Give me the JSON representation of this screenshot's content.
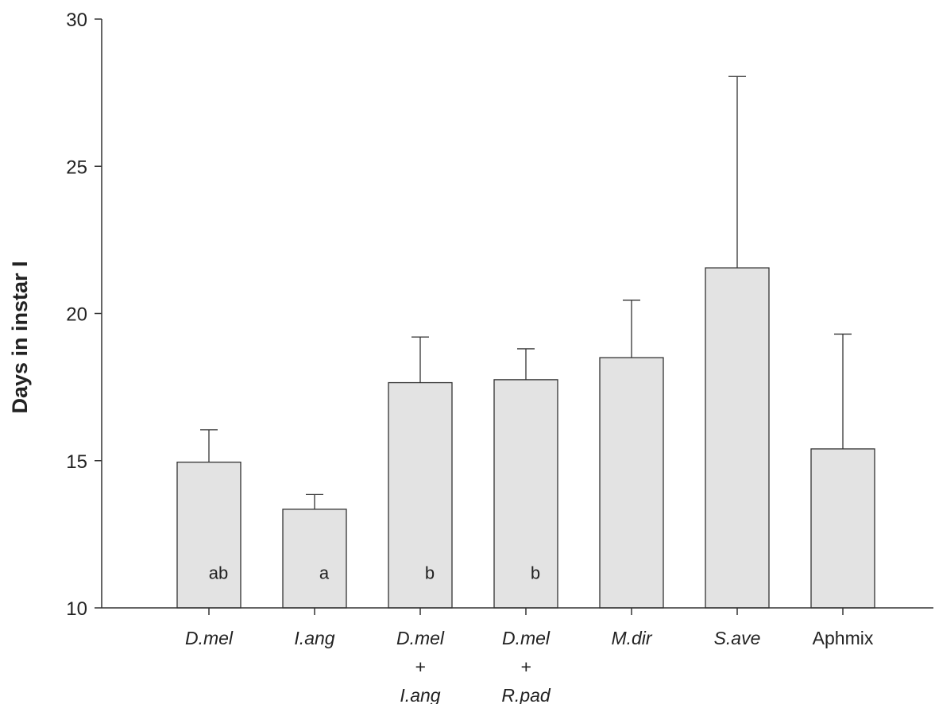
{
  "chart_data": {
    "type": "bar",
    "title": "",
    "xlabel": "",
    "ylabel": "Days in instar I",
    "ylim": [
      10,
      30
    ],
    "yticks": [
      10,
      15,
      20,
      25,
      30
    ],
    "grid": false,
    "legend": "none",
    "bar_color": "#e3e3e3",
    "edge_color": "#333333",
    "categories": [
      {
        "lines": [
          "D.mel"
        ],
        "italic": true
      },
      {
        "lines": [
          "I.ang"
        ],
        "italic": true
      },
      {
        "lines": [
          "D.mel",
          "+",
          "I.ang"
        ],
        "italic": true
      },
      {
        "lines": [
          "D.mel",
          "+",
          "R.pad"
        ],
        "italic": true
      },
      {
        "lines": [
          "M.dir"
        ],
        "italic": true
      },
      {
        "lines": [
          "S.ave"
        ],
        "italic": true
      },
      {
        "lines": [
          "Aphmix"
        ],
        "italic": false
      }
    ],
    "values": [
      14.95,
      13.35,
      17.65,
      17.75,
      18.5,
      21.55,
      15.4
    ],
    "error_upper": [
      16.05,
      13.85,
      19.2,
      18.8,
      20.45,
      28.05,
      19.3
    ],
    "letters": [
      "ab",
      "a",
      "b",
      "b",
      "",
      "",
      ""
    ],
    "letter_y": 11.2
  }
}
